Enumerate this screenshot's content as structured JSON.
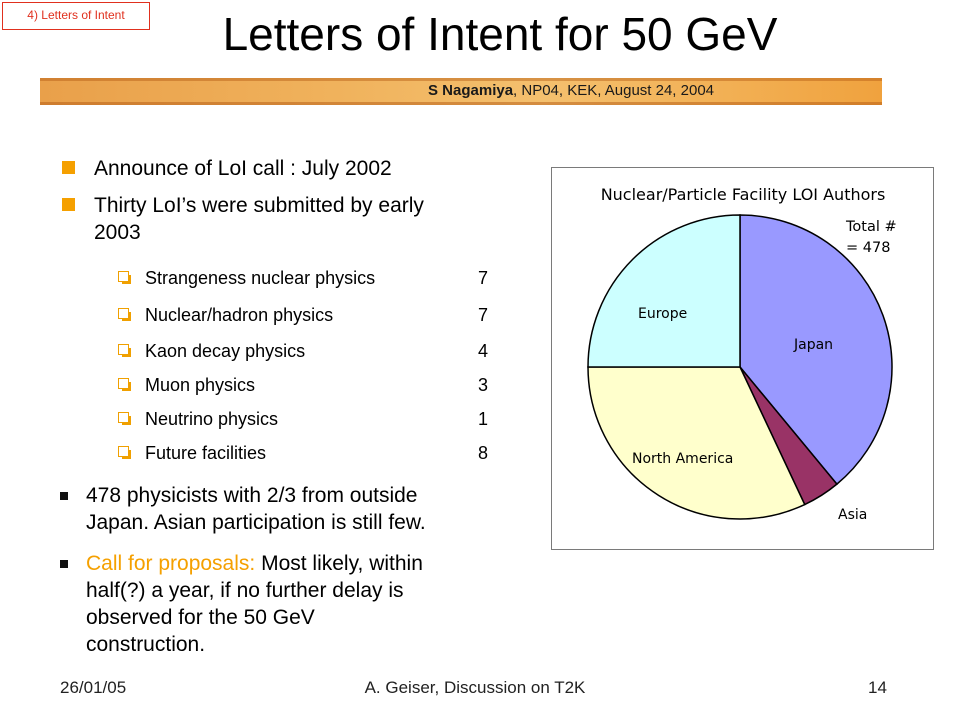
{
  "slide": {
    "section_tag": "4) Letters of Intent",
    "title": "Letters of Intent for 50 GeV",
    "banner_author": "S Nagamiya",
    "banner_rest": ", NP04, KEK, August 24, 2004",
    "bullet1": "Announce of LoI call : July 2002",
    "bullet2": "Thirty LoI’s were submitted by early 2003",
    "bullet2_line1": "Thirty LoI’s were submitted by early",
    "bullet2_line2": "2003",
    "categories": [
      {
        "label": "Strangeness nuclear physics",
        "count": "7"
      },
      {
        "label": "Nuclear/hadron physics",
        "count": "7"
      },
      {
        "label": "Kaon decay physics",
        "count": "4"
      },
      {
        "label": "Muon physics",
        "count": "3"
      },
      {
        "label": "Neutrino physics",
        "count": "1"
      },
      {
        "label": "Future facilities",
        "count": "8"
      }
    ],
    "bullet3_line1": "478 physicists with 2/3 from outside",
    "bullet3_line2": "Japan. Asian participation is still few.",
    "bullet4_highlight": "Call for proposals:",
    "bullet4_line1_rest": " Most likely, within",
    "bullet4_line2": "half(?) a year, if no further delay is",
    "bullet4_line3": "observed for the 50 GeV",
    "bullet4_line4": "construction.",
    "footer_date": "26/01/05",
    "footer_center": "A. Geiser,  Discussion on T2K",
    "footer_page": "14"
  },
  "chart_data": {
    "type": "pie",
    "title": "Nuclear/Particle Facility LOI Authors",
    "total_label_line1": "Total #",
    "total_label_line2": "= 478",
    "slices": [
      {
        "label": "Japan",
        "fraction": 0.39,
        "color": "#9999ff"
      },
      {
        "label": "Asia",
        "fraction": 0.04,
        "color": "#993366"
      },
      {
        "label": "North America",
        "fraction": 0.32,
        "color": "#ffffcc"
      },
      {
        "label": "Europe",
        "fraction": 0.25,
        "color": "#ccffff"
      }
    ]
  },
  "colors": {
    "accent": "#f5a000",
    "tag": "#e0301e"
  }
}
